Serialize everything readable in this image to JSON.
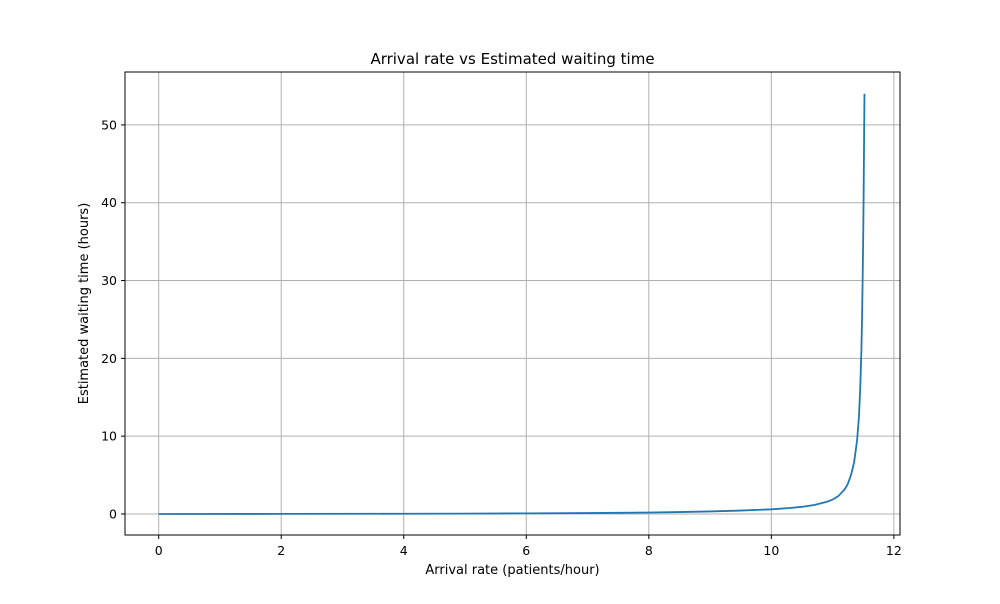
{
  "chart_data": {
    "type": "line",
    "title": "Arrival rate vs Estimated waiting time",
    "xlabel": "Arrival rate (patients/hour)",
    "ylabel": "Estimated waiting time (hours)",
    "xlim": [
      -0.55,
      12.1
    ],
    "ylim": [
      -2.7,
      56.8
    ],
    "xticks": [
      0,
      2,
      4,
      6,
      8,
      10,
      12
    ],
    "yticks": [
      0,
      10,
      20,
      30,
      40,
      50
    ],
    "grid": true,
    "series": [
      {
        "color": "#1f77b4",
        "x": [
          0.0,
          2.0,
          4.0,
          5.0,
          6.0,
          7.0,
          7.5,
          8.0,
          8.5,
          9.0,
          9.5,
          10.0,
          10.3,
          10.5,
          10.7,
          10.9,
          11.0,
          11.1,
          11.2,
          11.25,
          11.3,
          11.35,
          11.4,
          11.43,
          11.45,
          11.47,
          11.48,
          11.49,
          11.5,
          11.505,
          11.51,
          11.514,
          11.518,
          11.52
        ],
        "y": [
          0.0,
          0.01,
          0.03,
          0.05,
          0.08,
          0.12,
          0.15,
          0.19,
          0.25,
          0.33,
          0.44,
          0.6,
          0.77,
          0.92,
          1.15,
          1.55,
          1.85,
          2.35,
          3.2,
          3.9,
          5.0,
          6.6,
          9.5,
          12.5,
          16.0,
          21.0,
          25.0,
          30.0,
          36.0,
          40.0,
          44.5,
          48.5,
          52.0,
          54.0
        ]
      }
    ]
  }
}
